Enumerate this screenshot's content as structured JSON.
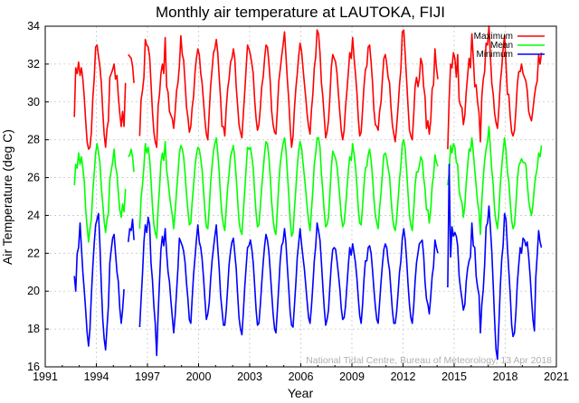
{
  "chart_data": {
    "type": "line",
    "title": "Monthly air temperature at LAUTOKA, FIJI",
    "xlabel": "Year",
    "ylabel": "Air Temperature (deg C)",
    "xlim": [
      1991,
      2021
    ],
    "ylim": [
      16,
      34
    ],
    "xticks": [
      "1991",
      "1994",
      "1997",
      "2000",
      "2003",
      "2006",
      "2009",
      "2012",
      "2015",
      "2018",
      "2021"
    ],
    "yticks": [
      "16",
      "18",
      "20",
      "22",
      "24",
      "26",
      "28",
      "30",
      "32",
      "34"
    ],
    "grid": true,
    "legend_position": "top-right",
    "credit": "National Tidal Centre, Bureau of Meteorology, 13 Apr 2018",
    "start_month": "1992-09",
    "series": [
      {
        "name": "Maximum",
        "color": "#ff0000",
        "values": [
          29.2,
          31.8,
          31.5,
          32.1,
          31.4,
          31.8,
          31.2,
          30.2,
          29.0,
          27.9,
          27.5,
          27.6,
          28.4,
          30.2,
          31.2,
          32.9,
          33.0,
          32.4,
          31.9,
          31.0,
          29.5,
          28.3,
          27.6,
          28.6,
          29.0,
          31.3,
          31.5,
          31.7,
          32.0,
          31.2,
          31.4,
          30.3,
          29.4,
          28.7,
          29.5,
          28.7,
          31.0,
          null,
          32.5,
          32.4,
          32.3,
          31.9,
          31.0,
          null,
          null,
          null,
          28.2,
          30.1,
          30.6,
          31.3,
          33.3,
          33.0,
          32.9,
          32.4,
          31.0,
          29.5,
          28.4,
          27.9,
          27.6,
          29.8,
          30.4,
          31.5,
          32.0,
          31.5,
          33.4,
          30.8,
          30.5,
          29.5,
          29.3,
          29.1,
          28.6,
          29.5,
          30.6,
          31.0,
          31.9,
          33.5,
          32.5,
          32.2,
          31.0,
          29.7,
          29.2,
          28.4,
          28.7,
          29.7,
          30.3,
          31.6,
          32.3,
          32.8,
          32.5,
          31.5,
          31.0,
          30.0,
          29.0,
          28.3,
          28.0,
          29.5,
          30.8,
          31.7,
          32.6,
          32.8,
          33.3,
          32.6,
          31.3,
          30.2,
          28.7,
          28.7,
          28.2,
          29.7,
          30.7,
          31.2,
          32.1,
          32.3,
          32.8,
          32.3,
          30.8,
          29.8,
          28.8,
          28.4,
          28.1,
          29.3,
          30.5,
          31.8,
          33.0,
          32.8,
          32.5,
          32.0,
          31.5,
          30.1,
          29.1,
          28.5,
          28.8,
          29.7,
          30.8,
          31.3,
          32.3,
          33.0,
          32.9,
          32.1,
          31.0,
          29.5,
          28.8,
          28.4,
          28.3,
          29.6,
          31.1,
          31.7,
          32.4,
          33.0,
          33.7,
          32.5,
          31.2,
          30.1,
          28.7,
          27.6,
          28.2,
          29.6,
          30.7,
          31.5,
          32.4,
          33.1,
          32.7,
          31.8,
          31.0,
          30.2,
          29.3,
          28.7,
          28.3,
          29.6,
          30.4,
          31.8,
          32.4,
          33.8,
          33.6,
          32.6,
          31.0,
          30.3,
          29.2,
          28.1,
          28.4,
          29.0,
          30.3,
          31.8,
          32.5,
          32.3,
          32.1,
          31.5,
          30.4,
          29.4,
          28.5,
          28.0,
          28.5,
          29.7,
          30.6,
          31.6,
          32.6,
          32.3,
          33.4,
          32.3,
          31.5,
          30.5,
          29.1,
          28.2,
          28.4,
          29.6,
          30.8,
          31.7,
          31.9,
          32.9,
          33.0,
          32.1,
          31.0,
          29.6,
          28.8,
          28.7,
          28.5,
          29.5,
          30.0,
          31.2,
          32.3,
          32.5,
          32.0,
          31.3,
          31.0,
          29.7,
          28.8,
          28.3,
          27.9,
          28.7,
          29.7,
          30.9,
          31.7,
          33.7,
          33.8,
          32.5,
          31.2,
          29.8,
          28.5,
          28.2,
          28.0,
          29.3,
          30.8,
          31.3,
          30.8,
          31.2,
          32.3,
          32.0,
          30.8,
          30.3,
          28.6,
          29.0,
          28.3,
          29.0,
          30.7,
          30.9,
          32.8,
          31.8,
          31.2,
          null,
          null,
          null,
          null,
          null,
          null,
          27.5,
          30.2,
          32.0,
          31.8,
          32.6,
          32.3,
          31.3,
          32.5,
          30.1,
          29.8,
          29.7,
          28.8,
          29.3,
          30.5,
          31.4,
          32.3,
          31.8,
          33.6,
          32.3,
          30.8,
          30.9,
          30.0,
          29.4,
          27.9,
          30.3,
          31.2,
          31.6,
          33.1,
          33.0,
          34.0,
          32.5,
          31.0,
          30.4,
          29.4,
          28.9,
          28.6,
          29.6,
          31.0,
          31.8,
          32.8,
          33.5,
          32.0,
          30.4,
          30.4,
          29.2,
          28.4,
          28.2,
          28.5,
          29.6,
          30.9,
          31.6,
          31.6,
          32.0,
          31.5,
          31.3,
          31.1,
          30.6,
          29.5,
          29.2,
          29.0,
          29.6,
          30.3,
          30.8,
          31.1,
          32.5,
          32.0,
          32.6
        ]
      },
      {
        "name": "Mean",
        "color": "#00ff00",
        "values": [
          25.6,
          26.7,
          26.5,
          27.3,
          26.7,
          27.1,
          26.5,
          25.8,
          24.3,
          23.4,
          22.6,
          23.3,
          23.8,
          25.3,
          26.2,
          27.3,
          27.8,
          27.3,
          26.8,
          25.5,
          24.6,
          23.7,
          23.1,
          23.8,
          24.1,
          25.9,
          26.4,
          26.8,
          27.5,
          26.6,
          26.2,
          25.2,
          24.3,
          23.9,
          24.6,
          24.2,
          25.4,
          null,
          27.1,
          27.2,
          27.5,
          27.1,
          26.3,
          null,
          null,
          null,
          23.3,
          24.9,
          25.6,
          26.6,
          27.8,
          27.3,
          27.6,
          27.0,
          25.9,
          24.5,
          23.5,
          23.1,
          22.8,
          24.4,
          25.4,
          26.8,
          27.3,
          26.9,
          27.9,
          26.4,
          25.8,
          25.1,
          24.5,
          24.0,
          23.3,
          24.2,
          25.3,
          26.2,
          27.3,
          27.7,
          27.5,
          27.1,
          26.2,
          25.1,
          24.3,
          23.5,
          23.6,
          24.7,
          25.6,
          26.6,
          27.2,
          27.6,
          27.5,
          27.0,
          26.4,
          25.3,
          24.2,
          23.4,
          23.3,
          24.4,
          25.7,
          26.6,
          27.4,
          27.8,
          28.1,
          27.3,
          26.3,
          25.0,
          24.0,
          23.5,
          23.2,
          24.4,
          25.5,
          26.2,
          27.1,
          27.4,
          27.7,
          27.0,
          26.0,
          24.8,
          23.7,
          23.2,
          23.0,
          24.1,
          25.3,
          26.5,
          27.6,
          27.5,
          27.6,
          27.1,
          26.5,
          25.2,
          24.1,
          23.4,
          23.5,
          24.5,
          25.5,
          26.4,
          27.3,
          27.9,
          27.8,
          27.1,
          26.0,
          24.7,
          23.8,
          23.2,
          23.0,
          24.3,
          25.7,
          26.7,
          27.3,
          27.8,
          28.1,
          27.5,
          26.3,
          25.1,
          23.8,
          22.9,
          23.1,
          24.3,
          25.4,
          26.6,
          27.4,
          27.9,
          27.6,
          26.8,
          26.1,
          25.3,
          24.4,
          23.7,
          23.2,
          24.3,
          25.3,
          26.7,
          27.3,
          28.1,
          28.1,
          27.6,
          26.2,
          25.3,
          24.2,
          23.4,
          23.5,
          23.9,
          25.2,
          26.5,
          27.4,
          27.2,
          27.0,
          26.6,
          25.8,
          24.9,
          24.0,
          23.4,
          23.6,
          24.4,
          25.4,
          26.4,
          27.1,
          26.9,
          27.8,
          27.2,
          26.6,
          25.6,
          24.3,
          23.6,
          23.5,
          24.5,
          25.6,
          26.5,
          26.6,
          27.2,
          27.5,
          26.9,
          26.0,
          24.9,
          24.0,
          23.6,
          23.3,
          24.4,
          25.2,
          26.2,
          27.2,
          27.3,
          27.0,
          26.5,
          26.1,
          24.9,
          24.0,
          23.4,
          23.2,
          23.8,
          24.8,
          25.9,
          26.6,
          27.8,
          28.0,
          27.5,
          26.4,
          25.2,
          24.0,
          23.5,
          23.2,
          24.3,
          25.6,
          26.3,
          26.3,
          26.6,
          27.1,
          26.9,
          26.0,
          25.4,
          24.3,
          24.3,
          23.6,
          24.3,
          25.6,
          26.1,
          27.2,
          26.8,
          26.6,
          null,
          null,
          null,
          null,
          null,
          null,
          25.6,
          26.3,
          27.7,
          27.3,
          27.8,
          27.6,
          26.8,
          26.7,
          25.3,
          24.9,
          24.7,
          23.9,
          24.5,
          25.7,
          26.6,
          27.5,
          27.4,
          28.1,
          27.3,
          26.4,
          25.6,
          24.7,
          24.2,
          23.0,
          24.8,
          26.0,
          26.9,
          27.5,
          27.9,
          28.7,
          27.6,
          26.4,
          25.6,
          24.3,
          23.7,
          23.3,
          24.2,
          25.6,
          26.6,
          27.4,
          28.1,
          27.4,
          26.3,
          25.8,
          24.7,
          23.7,
          23.3,
          23.5,
          24.6,
          25.8,
          26.6,
          26.8,
          27.0,
          26.8,
          26.8,
          26.7,
          25.7,
          24.8,
          24.3,
          24.0,
          24.6,
          25.5,
          26.1,
          26.5,
          27.3,
          27.1,
          27.7
        ]
      },
      {
        "name": "Minimum",
        "color": "#0000ff",
        "values": [
          20.8,
          20.0,
          22.0,
          22.3,
          23.6,
          22.3,
          21.0,
          20.0,
          19.0,
          17.8,
          17.1,
          18.0,
          19.8,
          21.3,
          22.5,
          23.5,
          23.8,
          24.1,
          22.5,
          20.3,
          18.5,
          17.5,
          16.9,
          18.1,
          19.2,
          21.5,
          22.2,
          22.8,
          23.0,
          22.0,
          21.0,
          20.5,
          19.1,
          18.3,
          19.0,
          20.1,
          null,
          null,
          22.6,
          23.3,
          23.2,
          23.8,
          22.7,
          null,
          null,
          null,
          18.1,
          19.5,
          20.9,
          22.6,
          23.5,
          23.1,
          23.9,
          23.5,
          21.5,
          20.6,
          19.2,
          18.3,
          16.6,
          18.8,
          20.5,
          22.2,
          22.9,
          22.4,
          23.3,
          22.0,
          21.0,
          20.5,
          19.5,
          18.6,
          17.8,
          18.7,
          20.0,
          21.2,
          22.8,
          22.6,
          22.4,
          22.1,
          21.5,
          20.4,
          19.6,
          18.5,
          18.3,
          19.6,
          20.9,
          21.8,
          22.7,
          23.5,
          22.6,
          22.3,
          21.7,
          20.7,
          19.5,
          18.5,
          18.8,
          19.4,
          20.6,
          21.6,
          22.3,
          22.9,
          23.5,
          22.3,
          21.2,
          19.8,
          19.0,
          18.2,
          18.2,
          19.0,
          20.2,
          21.4,
          22.1,
          22.6,
          22.8,
          22.0,
          21.2,
          19.8,
          18.6,
          18.0,
          17.7,
          18.8,
          20.2,
          21.3,
          22.3,
          22.4,
          22.7,
          22.2,
          21.5,
          20.3,
          19.0,
          18.2,
          18.3,
          19.3,
          20.4,
          21.5,
          22.4,
          23.0,
          22.7,
          22.1,
          21.0,
          19.9,
          18.8,
          18.0,
          17.8,
          19.0,
          20.3,
          21.6,
          22.4,
          22.6,
          23.3,
          22.6,
          21.3,
          20.1,
          18.9,
          18.2,
          18.1,
          19.2,
          20.4,
          21.8,
          22.5,
          23.3,
          22.5,
          21.8,
          21.2,
          20.3,
          19.4,
          18.6,
          18.3,
          19.2,
          20.3,
          21.6,
          22.4,
          23.6,
          23.2,
          22.7,
          21.5,
          20.3,
          19.1,
          18.2,
          18.5,
          19.0,
          20.3,
          21.4,
          22.2,
          22.3,
          22.2,
          21.6,
          20.9,
          20.1,
          19.1,
          18.5,
          18.6,
          19.2,
          20.3,
          21.4,
          22.3,
          21.9,
          22.5,
          22.0,
          21.5,
          20.7,
          19.6,
          18.7,
          18.3,
          19.3,
          20.6,
          21.6,
          21.6,
          22.3,
          22.4,
          22.0,
          21.1,
          20.1,
          19.2,
          18.5,
          18.3,
          19.4,
          20.5,
          21.4,
          22.2,
          22.5,
          22.3,
          21.6,
          21.1,
          20.0,
          19.0,
          18.3,
          18.3,
          18.9,
          19.9,
          21.0,
          21.6,
          22.8,
          23.3,
          22.7,
          21.7,
          20.4,
          19.3,
          18.6,
          18.3,
          19.2,
          20.5,
          21.5,
          22.0,
          22.5,
          22.6,
          22.7,
          21.9,
          20.5,
          19.6,
          19.3,
          18.8,
          19.7,
          20.8,
          21.3,
          22.7,
          22.3,
          22.0,
          null,
          null,
          null,
          null,
          null,
          null,
          20.2,
          26.7,
          21.8,
          23.4,
          22.9,
          23.1,
          22.9,
          22.4,
          20.8,
          20.1,
          19.6,
          19.0,
          19.3,
          20.5,
          21.2,
          21.6,
          21.8,
          23.6,
          22.4,
          22.3,
          20.8,
          20.2,
          19.8,
          17.8,
          19.3,
          20.1,
          21.4,
          23.4,
          23.6,
          24.5,
          23.4,
          22.1,
          20.3,
          18.5,
          16.9,
          16.4,
          18.2,
          20.2,
          21.7,
          22.4,
          24.1,
          23.8,
          22.3,
          21.1,
          19.8,
          18.2,
          17.6,
          17.8,
          18.9,
          20.4,
          21.4,
          22.3,
          22.0,
          22.8,
          22.7,
          22.4,
          22.6,
          21.8,
          20.8,
          19.6,
          18.5,
          17.9,
          20.7,
          21.9,
          23.2,
          22.6,
          22.3
        ]
      }
    ]
  }
}
